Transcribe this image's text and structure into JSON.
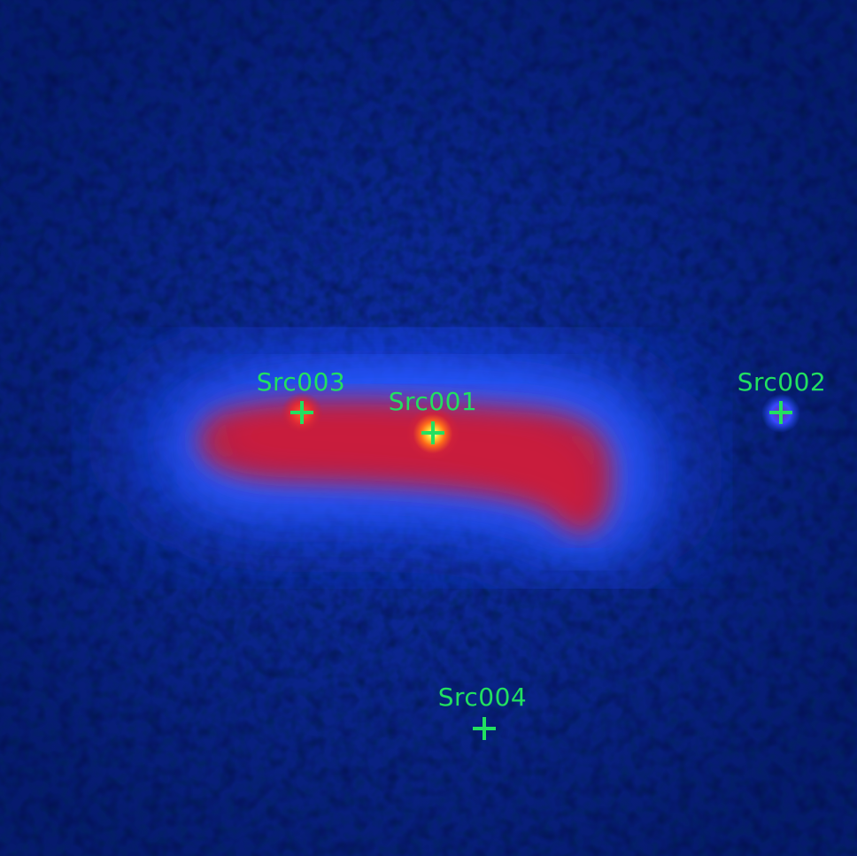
{
  "image": {
    "description_colors": {
      "background": "#061a6e",
      "halo": "#1e50ff",
      "emission": "#c41d3a",
      "core": "#ffd21a",
      "marker": "#22e060"
    }
  },
  "sources": [
    {
      "id": "src001",
      "label": "Src001",
      "marker_icon": "crosshair-icon"
    },
    {
      "id": "src002",
      "label": "Src002",
      "marker_icon": "crosshair-icon"
    },
    {
      "id": "src003",
      "label": "Src003",
      "marker_icon": "crosshair-icon"
    },
    {
      "id": "src004",
      "label": "Src004",
      "marker_icon": "crosshair-icon"
    }
  ]
}
